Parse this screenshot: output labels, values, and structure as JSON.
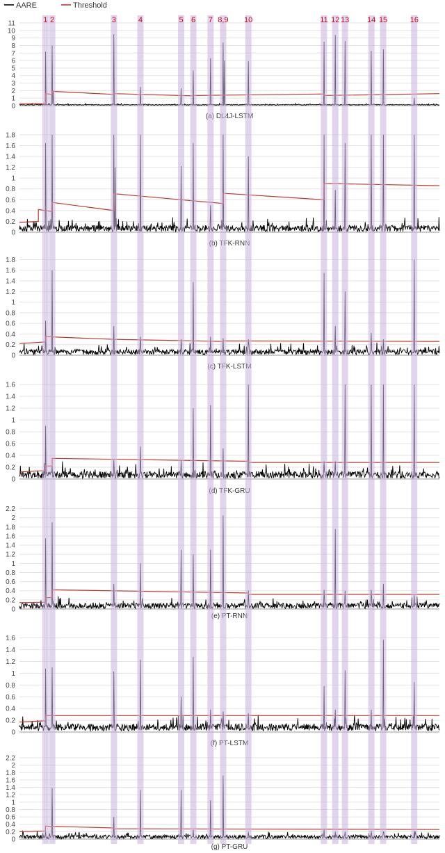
{
  "chart_data": {
    "type": "line",
    "legend": {
      "placement": "top-left",
      "entries": [
        {
          "label": "AARE",
          "color": "#000000"
        },
        {
          "label": "Threshold",
          "color": "#c0392b"
        }
      ]
    },
    "anomaly_bands": {
      "color": "#c9b3e0",
      "labels": [
        "1",
        "2",
        "3",
        "4",
        "5",
        "6",
        "7",
        "8,9",
        "10",
        "11",
        "12",
        "13",
        "14",
        "15",
        "16"
      ],
      "x_frac": [
        0.062,
        0.078,
        0.225,
        0.288,
        0.385,
        0.414,
        0.455,
        0.485,
        0.545,
        0.725,
        0.752,
        0.775,
        0.838,
        0.866,
        0.94
      ]
    },
    "panels": [
      {
        "caption": "(a) DL4J-LSTM",
        "yticks": [
          "0",
          "1",
          "2",
          "3",
          "4",
          "5",
          "6",
          "7",
          "8",
          "9",
          "10",
          "11"
        ],
        "ylim": [
          0,
          11
        ],
        "series": [
          {
            "name": "AARE",
            "baseline": 0.12,
            "noise": 0.05,
            "spikes": [
              [
                0.062,
                7.2
              ],
              [
                0.078,
                8.0
              ],
              [
                0.08,
                2.0
              ],
              [
                0.225,
                9.5
              ],
              [
                0.288,
                2.5
              ],
              [
                0.385,
                2.3
              ],
              [
                0.414,
                4.7
              ],
              [
                0.455,
                6.3
              ],
              [
                0.485,
                8.4
              ],
              [
                0.488,
                6.0
              ],
              [
                0.545,
                5.9
              ],
              [
                0.725,
                8.5
              ],
              [
                0.752,
                9.4
              ],
              [
                0.775,
                8.6
              ],
              [
                0.838,
                7.3
              ],
              [
                0.866,
                7.5
              ],
              [
                0.94,
                1.0
              ]
            ]
          },
          {
            "name": "Threshold",
            "segments": [
              [
                0.0,
                0.25,
                0.3
              ],
              [
                0.062,
                1.6,
                1.5
              ],
              [
                0.078,
                1.9,
                1.5
              ],
              [
                0.225,
                1.6,
                1.3
              ],
              [
                0.414,
                1.35,
                1.55
              ],
              [
                0.725,
                1.35,
                1.6
              ],
              [
                1.0,
                1.6,
                1.6
              ]
            ]
          }
        ]
      },
      {
        "caption": "(b) TFK-RNN",
        "yticks": [
          "0",
          "0.2",
          "0.4",
          "0.6",
          "0.8",
          "1",
          "1.2",
          "1.4",
          "1.6",
          "1.8"
        ],
        "ylim": [
          0,
          1.85
        ],
        "series": [
          {
            "name": "AARE",
            "baseline": 0.07,
            "noise": 0.06,
            "spikes": [
              [
                0.062,
                1.65
              ],
              [
                0.078,
                1.8
              ],
              [
                0.225,
                1.8
              ],
              [
                0.228,
                1.2
              ],
              [
                0.288,
                1.8
              ],
              [
                0.385,
                1.22
              ],
              [
                0.414,
                1.65
              ],
              [
                0.455,
                0.5
              ],
              [
                0.485,
                1.8
              ],
              [
                0.545,
                1.4
              ],
              [
                0.725,
                1.8
              ],
              [
                0.752,
                0.78
              ],
              [
                0.775,
                1.65
              ],
              [
                0.838,
                1.8
              ],
              [
                0.866,
                1.8
              ],
              [
                0.94,
                1.8
              ]
            ]
          },
          {
            "name": "Threshold",
            "segments": [
              [
                0.0,
                0.18,
                0.2
              ],
              [
                0.045,
                0.42,
                0.38
              ],
              [
                0.078,
                0.55,
                0.4
              ],
              [
                0.225,
                0.71,
                0.53
              ],
              [
                0.485,
                0.72,
                0.6
              ],
              [
                0.725,
                0.9,
                0.86
              ],
              [
                1.0,
                0.86,
                0.86
              ]
            ]
          }
        ]
      },
      {
        "caption": "(c) TFK-LSTM",
        "yticks": [
          "0",
          "0.2",
          "0.4",
          "0.6",
          "0.8",
          "1",
          "1.2",
          "1.4",
          "1.6",
          "1.8"
        ],
        "ylim": [
          0,
          1.95
        ],
        "series": [
          {
            "name": "AARE",
            "baseline": 0.06,
            "noise": 0.05,
            "spikes": [
              [
                0.062,
                0.65
              ],
              [
                0.078,
                1.6
              ],
              [
                0.225,
                0.55
              ],
              [
                0.288,
                0.35
              ],
              [
                0.385,
                0.3
              ],
              [
                0.414,
                1.38
              ],
              [
                0.455,
                0.35
              ],
              [
                0.485,
                0.32
              ],
              [
                0.545,
                0.3
              ],
              [
                0.725,
                1.55
              ],
              [
                0.752,
                0.55
              ],
              [
                0.775,
                1.2
              ],
              [
                0.838,
                0.42
              ],
              [
                0.866,
                0.3
              ],
              [
                0.94,
                1.8
              ]
            ]
          },
          {
            "name": "Threshold",
            "segments": [
              [
                0.0,
                0.22,
                0.25
              ],
              [
                0.062,
                0.35,
                0.3
              ],
              [
                0.225,
                0.3,
                0.26
              ],
              [
                0.485,
                0.27,
                0.26
              ],
              [
                1.0,
                0.28,
                0.28
              ]
            ]
          }
        ]
      },
      {
        "caption": "(d) TFK-GRU",
        "yticks": [
          "0",
          "0.2",
          "0.4",
          "0.6",
          "0.8",
          "1",
          "1.2",
          "1.4",
          "1.6"
        ],
        "ylim": [
          0,
          1.72
        ],
        "series": [
          {
            "name": "AARE",
            "baseline": 0.07,
            "noise": 0.06,
            "spikes": [
              [
                0.062,
                0.9
              ],
              [
                0.078,
                0.22
              ],
              [
                0.225,
                0.32
              ],
              [
                0.288,
                0.55
              ],
              [
                0.385,
                0.32
              ],
              [
                0.414,
                1.2
              ],
              [
                0.455,
                1.25
              ],
              [
                0.485,
                0.52
              ],
              [
                0.545,
                1.6
              ],
              [
                0.725,
                0.3
              ],
              [
                0.752,
                0.3
              ],
              [
                0.775,
                1.6
              ],
              [
                0.838,
                1.6
              ],
              [
                0.866,
                1.6
              ],
              [
                0.94,
                1.6
              ]
            ]
          },
          {
            "name": "Threshold",
            "segments": [
              [
                0.0,
                0.12,
                0.14
              ],
              [
                0.062,
                0.22,
                0.22
              ],
              [
                0.078,
                0.35,
                0.3
              ],
              [
                0.545,
                0.28,
                0.28
              ],
              [
                1.0,
                0.3,
                0.3
              ]
            ]
          }
        ]
      },
      {
        "caption": "(e) PT-RNN",
        "yticks": [
          "0",
          "0.2",
          "0.4",
          "0.6",
          "0.8",
          "1",
          "1.2",
          "1.4",
          "1.6",
          "1.8",
          "2",
          "2.2"
        ],
        "ylim": [
          0,
          2.3
        ],
        "series": [
          {
            "name": "AARE",
            "baseline": 0.07,
            "noise": 0.06,
            "spikes": [
              [
                0.062,
                1.55
              ],
              [
                0.078,
                1.9
              ],
              [
                0.225,
                0.55
              ],
              [
                0.288,
                1.0
              ],
              [
                0.385,
                1.3
              ],
              [
                0.414,
                1.2
              ],
              [
                0.455,
                1.3
              ],
              [
                0.485,
                2.05
              ],
              [
                0.545,
                0.4
              ],
              [
                0.725,
                0.42
              ],
              [
                0.752,
                1.75
              ],
              [
                0.775,
                0.4
              ],
              [
                0.838,
                0.42
              ],
              [
                0.866,
                0.55
              ],
              [
                0.94,
                0.3
              ]
            ]
          },
          {
            "name": "Threshold",
            "segments": [
              [
                0.0,
                0.14,
                0.15
              ],
              [
                0.062,
                0.25,
                0.25
              ],
              [
                0.078,
                0.42,
                0.35
              ],
              [
                0.545,
                0.32,
                0.32
              ],
              [
                1.0,
                0.3,
                0.3
              ]
            ]
          }
        ]
      },
      {
        "caption": "(f) PT-LSTM",
        "yticks": [
          "0",
          "0.2",
          "0.4",
          "0.6",
          "0.8",
          "1",
          "1.2",
          "1.4",
          "1.6"
        ],
        "ylim": [
          0,
          1.75
        ],
        "series": [
          {
            "name": "AARE",
            "baseline": 0.08,
            "noise": 0.06,
            "spikes": [
              [
                0.062,
                1.08
              ],
              [
                0.078,
                1.1
              ],
              [
                0.225,
                1.03
              ],
              [
                0.288,
                1.23
              ],
              [
                0.385,
                0.6
              ],
              [
                0.414,
                1.28
              ],
              [
                0.455,
                0.38
              ],
              [
                0.485,
                0.35
              ],
              [
                0.545,
                0.32
              ],
              [
                0.725,
                0.78
              ],
              [
                0.752,
                0.38
              ],
              [
                0.775,
                1.05
              ],
              [
                0.838,
                0.38
              ],
              [
                0.866,
                1.57
              ],
              [
                0.94,
                0.85
              ]
            ]
          },
          {
            "name": "Threshold",
            "segments": [
              [
                0.0,
                0.17,
                0.19
              ],
              [
                0.062,
                0.28,
                0.28
              ],
              [
                1.0,
                0.25,
                0.25
              ]
            ]
          }
        ]
      },
      {
        "caption": "(g) PT-GRU",
        "yticks": [
          "0",
          "0.2",
          "0.4",
          "0.6",
          "0.8",
          "1",
          "1.2",
          "1.4",
          "1.6",
          "1.8",
          "2",
          "2.2"
        ],
        "ylim": [
          0,
          2.35
        ],
        "series": [
          {
            "name": "AARE",
            "baseline": 0.06,
            "noise": 0.05,
            "spikes": [
              [
                0.062,
                0.2
              ],
              [
                0.078,
                1.38
              ],
              [
                0.225,
                0.6
              ],
              [
                0.288,
                1.33
              ],
              [
                0.385,
                1.33
              ],
              [
                0.414,
                0.25
              ],
              [
                0.455,
                1.05
              ],
              [
                0.485,
                1.72
              ],
              [
                0.545,
                0.2
              ],
              [
                0.725,
                0.25
              ],
              [
                0.752,
                0.2
              ],
              [
                0.775,
                0.2
              ],
              [
                0.838,
                0.22
              ],
              [
                0.866,
                0.2
              ],
              [
                0.94,
                0.22
              ]
            ]
          },
          {
            "name": "Threshold",
            "segments": [
              [
                0.0,
                0.2,
                0.22
              ],
              [
                0.062,
                0.35,
                0.3
              ],
              [
                0.225,
                0.28,
                0.26
              ],
              [
                1.0,
                0.25,
                0.25
              ]
            ]
          }
        ]
      }
    ]
  }
}
